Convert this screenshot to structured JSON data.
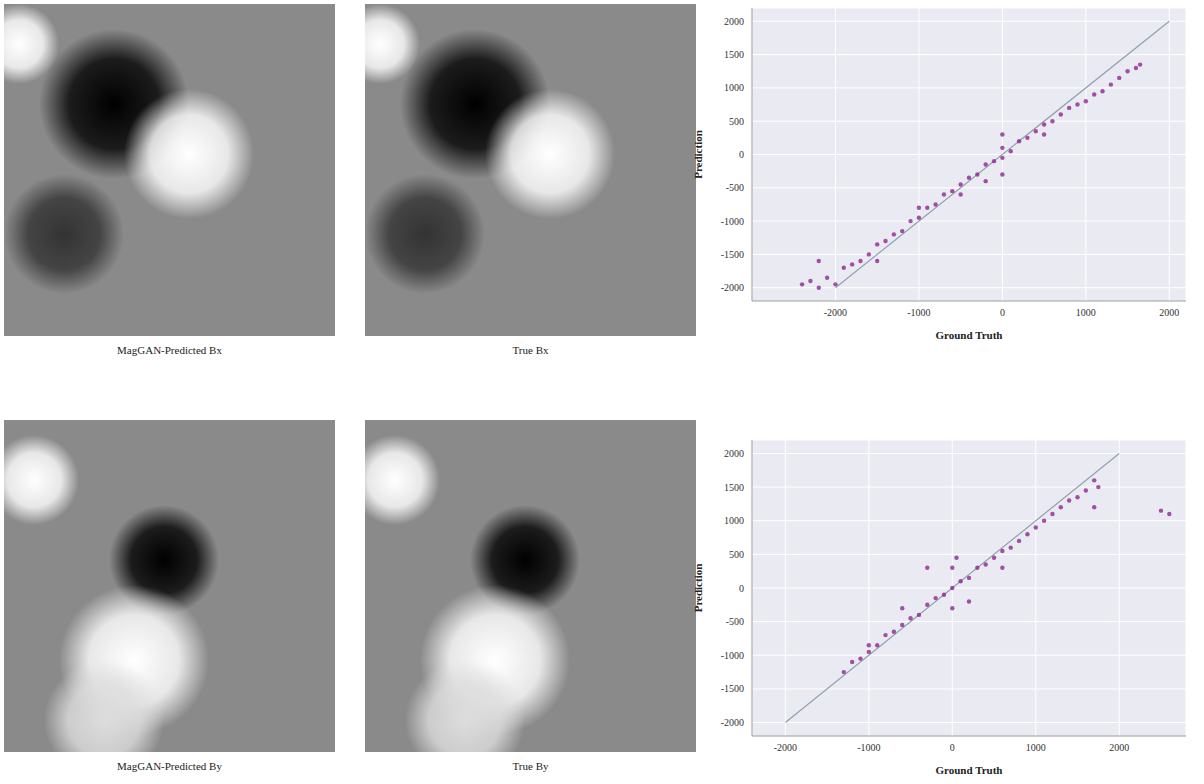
{
  "panels": [
    {
      "caption": "MagGAN-Predicted Bx"
    },
    {
      "caption": "True Bx"
    },
    {
      "caption": "MagGAN-Predicted By"
    },
    {
      "caption": "True By"
    }
  ],
  "chart_data": [
    {
      "type": "scatter",
      "x_label": "Ground Truth",
      "y_label": "Prediction",
      "xlim": [
        -3000,
        2200
      ],
      "ylim": [
        -2200,
        2200
      ],
      "xticks": [
        -2000,
        -1000,
        0,
        1000,
        2000
      ],
      "yticks": [
        -2000,
        -1500,
        -1000,
        -500,
        0,
        500,
        1000,
        1500,
        2000
      ],
      "grid": true,
      "color": "#8b1a8b",
      "marker": "circle",
      "reference_line": {
        "x": [
          -2000,
          2000
        ],
        "y": [
          -2000,
          2000
        ]
      },
      "x": [
        -2400,
        -2300,
        -2200,
        -2100,
        -2000,
        -1900,
        -1800,
        -1700,
        -1600,
        -1500,
        -1400,
        -1300,
        -1200,
        -1100,
        -1000,
        -900,
        -800,
        -700,
        -600,
        -500,
        -400,
        -300,
        -200,
        -100,
        0,
        0,
        100,
        200,
        300,
        400,
        500,
        600,
        700,
        800,
        900,
        1000,
        1100,
        1200,
        1300,
        1400,
        1500,
        1600,
        1650,
        -1500,
        -1000,
        -500,
        0,
        0,
        500,
        -200,
        -2200
      ],
      "values": [
        -1950,
        -1900,
        -2000,
        -1850,
        -1950,
        -1700,
        -1650,
        -1600,
        -1500,
        -1350,
        -1300,
        -1200,
        -1150,
        -1000,
        -950,
        -800,
        -750,
        -600,
        -550,
        -450,
        -350,
        -300,
        -150,
        -100,
        -50,
        100,
        50,
        200,
        250,
        350,
        450,
        500,
        600,
        700,
        750,
        800,
        900,
        950,
        1050,
        1150,
        1250,
        1300,
        1350,
        -1600,
        -800,
        -600,
        300,
        -300,
        300,
        -400,
        -1600
      ]
    },
    {
      "type": "scatter",
      "x_label": "Ground Truth",
      "y_label": "Prediction",
      "xlim": [
        -2400,
        2800
      ],
      "ylim": [
        -2200,
        2200
      ],
      "xticks": [
        -2000,
        -1000,
        0,
        1000,
        2000
      ],
      "yticks": [
        -2000,
        -1500,
        -1000,
        -500,
        0,
        500,
        1000,
        1500,
        2000
      ],
      "grid": true,
      "color": "#8b1a8b",
      "marker": "circle",
      "reference_line": {
        "x": [
          -2000,
          2000
        ],
        "y": [
          -2000,
          2000
        ]
      },
      "x": [
        -1300,
        -1200,
        -1100,
        -1000,
        -1000,
        -900,
        -800,
        -700,
        -600,
        -500,
        -400,
        -300,
        -200,
        -100,
        0,
        0,
        0,
        50,
        100,
        200,
        300,
        400,
        500,
        600,
        700,
        800,
        900,
        1000,
        1100,
        1200,
        1300,
        1400,
        1500,
        1600,
        1700,
        1700,
        1750,
        2500,
        2600,
        -300,
        200,
        -600,
        600
      ],
      "values": [
        -1250,
        -1100,
        -1050,
        -950,
        -850,
        -850,
        -700,
        -650,
        -550,
        -450,
        -400,
        -250,
        -150,
        -100,
        0,
        300,
        -300,
        450,
        100,
        150,
        300,
        350,
        450,
        550,
        600,
        700,
        800,
        900,
        1000,
        1100,
        1200,
        1300,
        1350,
        1450,
        1600,
        1200,
        1500,
        1150,
        1100,
        300,
        -200,
        -300,
        300
      ]
    }
  ]
}
